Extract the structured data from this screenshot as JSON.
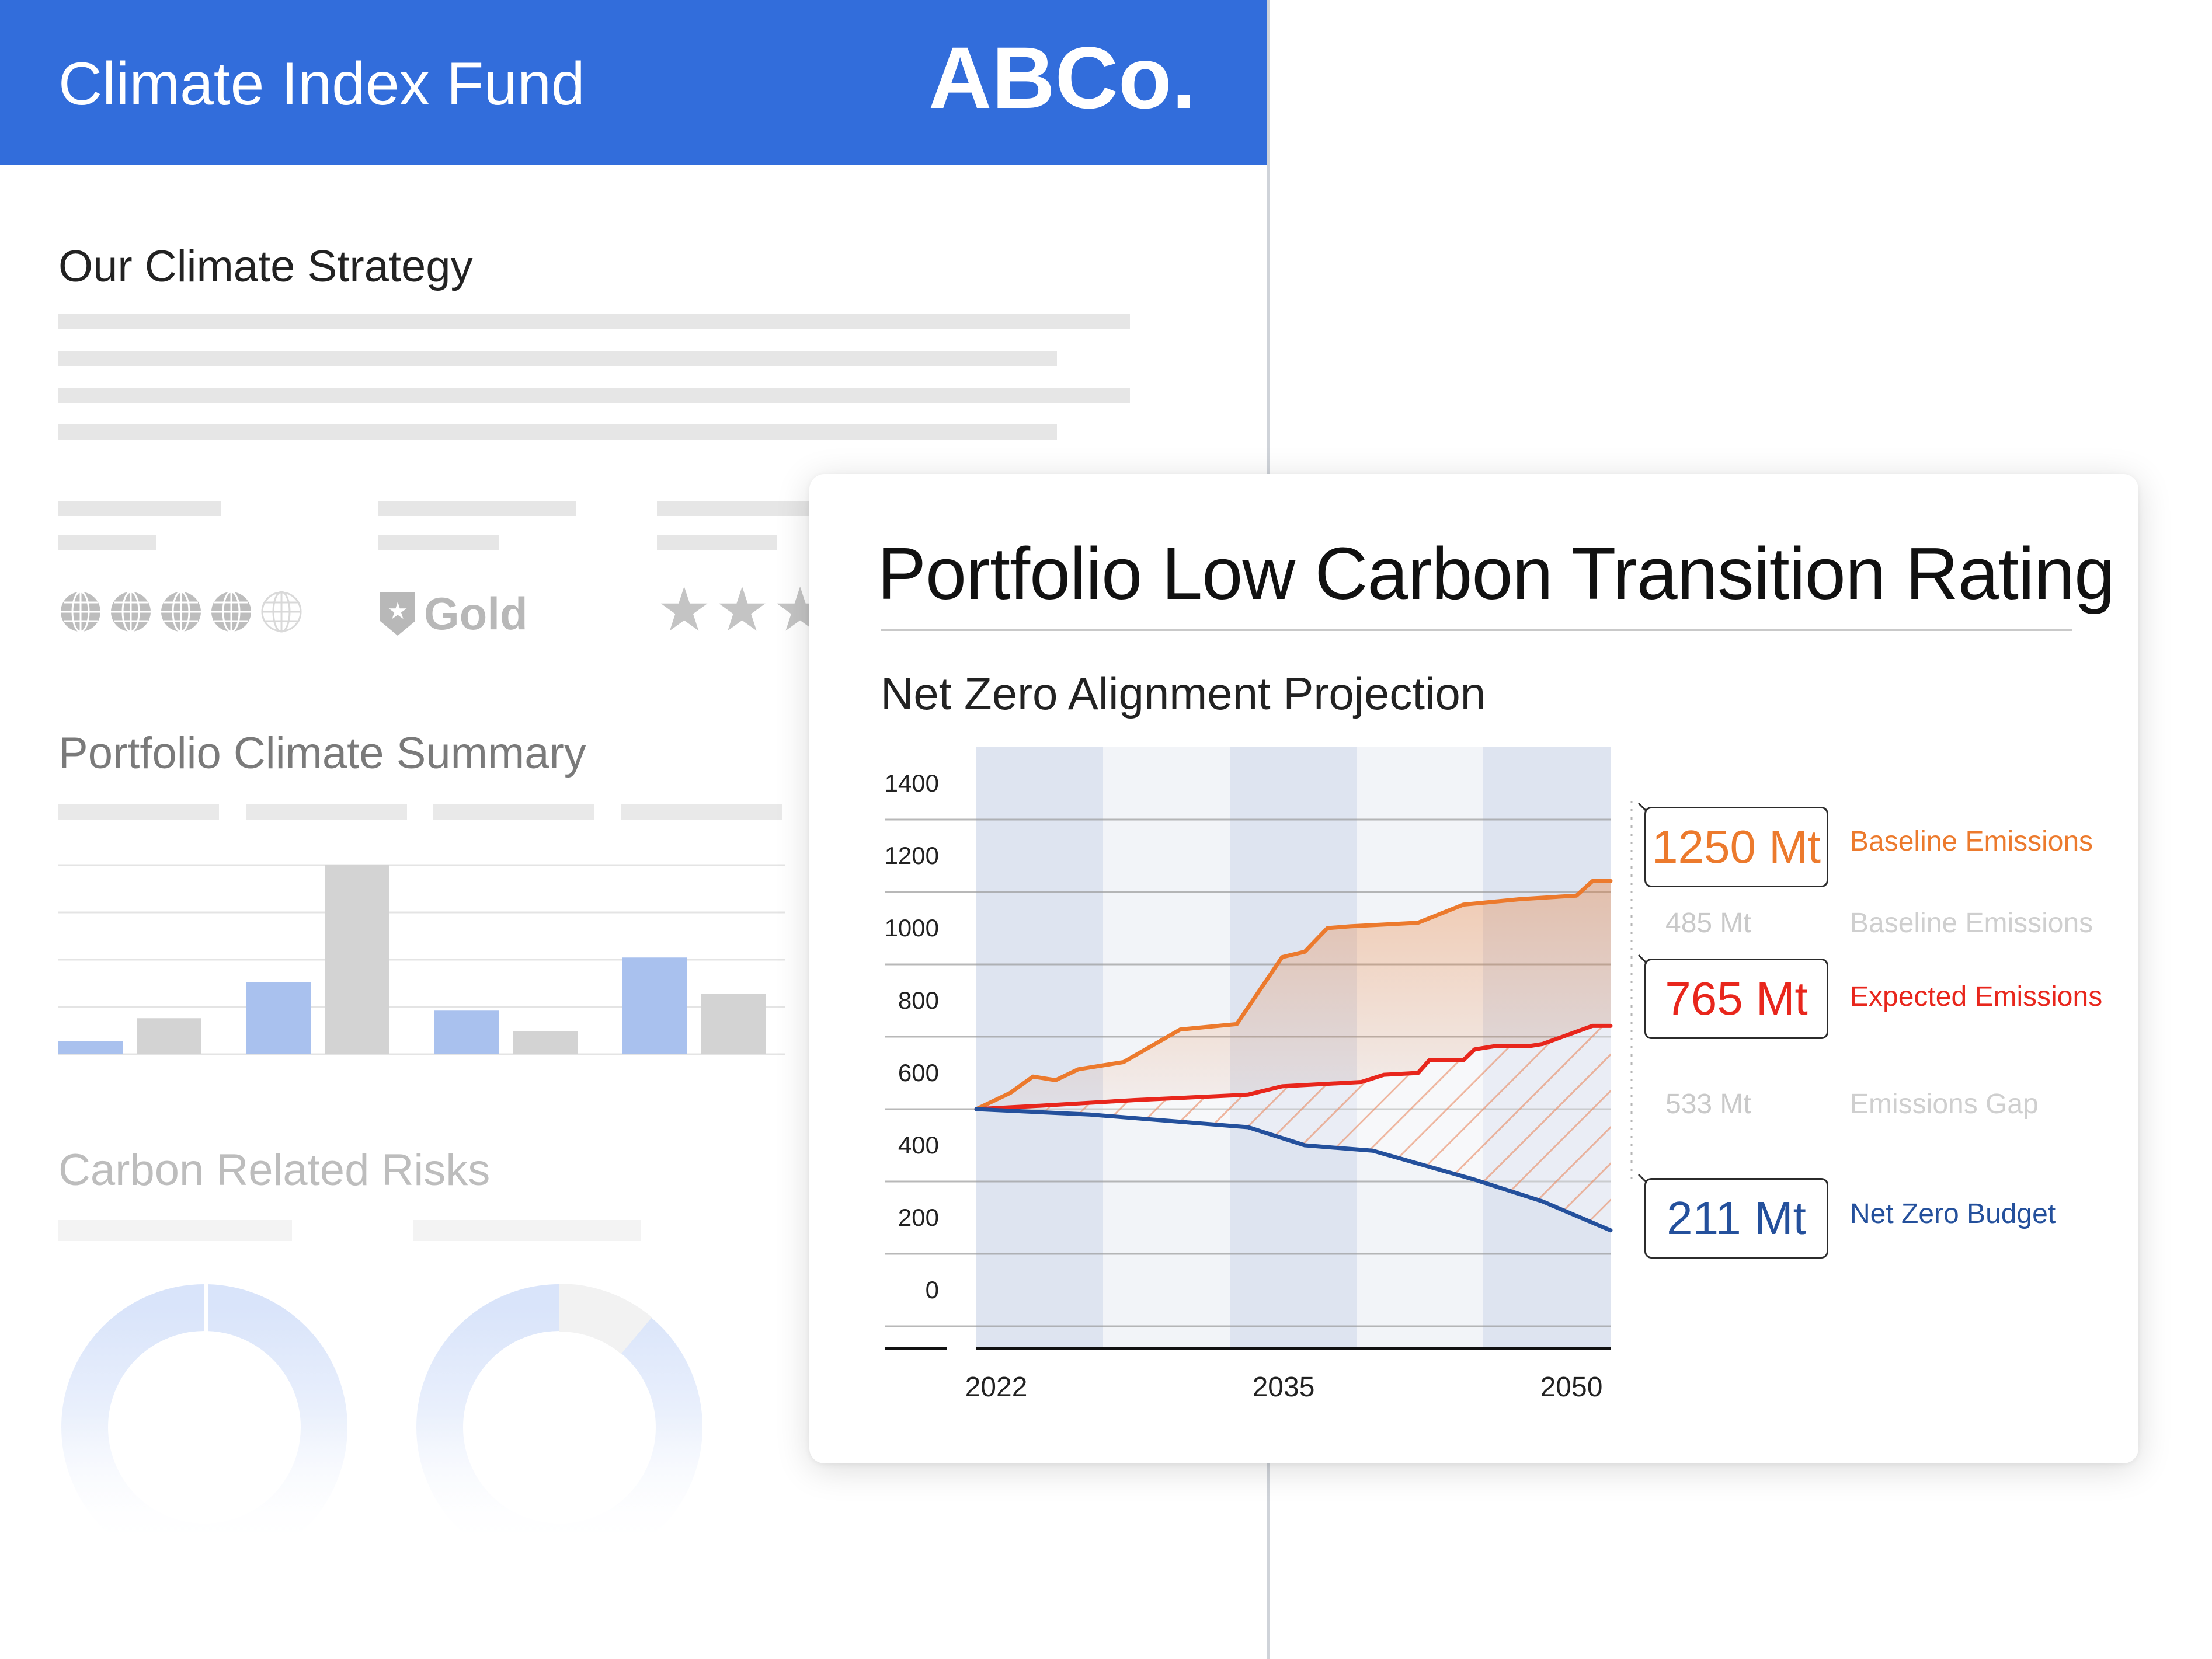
{
  "report": {
    "title": "Climate Index Fund",
    "brand": "ABCo.",
    "strategy_heading": "Our Climate Strategy",
    "rating_gold": "Gold",
    "globe_rating": 4,
    "globe_rating_max": 5,
    "summary_heading": "Portfolio Climate Summary",
    "risks_heading": "Carbon Related Risks",
    "summary_bars": [
      {
        "group": 1,
        "blue": 0.07,
        "gray": 0.19
      },
      {
        "group": 2,
        "blue": 0.38,
        "gray": 1.0
      },
      {
        "group": 3,
        "blue": 0.23,
        "gray": 0.12
      },
      {
        "group": 4,
        "blue": 0.51,
        "gray": 0.32
      }
    ]
  },
  "card": {
    "title": "Portfolio Low Carbon Transition Rating",
    "subtitle": "Net Zero Alignment Projection",
    "callouts": {
      "baseline_value": "1250 Mt",
      "baseline_label": "Baseline Emissions",
      "baseline_secondary_value": "485 Mt",
      "baseline_secondary_label": "Baseline Emissions",
      "expected_value": "765 Mt",
      "expected_label": "Expected Emissions",
      "gap_value": "533 Mt",
      "gap_label": "Emissions Gap",
      "netzero_value": "211 Mt",
      "netzero_label": "Net Zero Budget"
    }
  },
  "colors": {
    "header_blue": "#326ddb",
    "baseline_orange": "#ec7a2d",
    "expected_red": "#e8261c",
    "netzero_blue": "#24509c"
  },
  "chart_data": {
    "type": "line",
    "title": "Net Zero Alignment Projection",
    "xlabel": "",
    "ylabel": "",
    "ylim": [
      0,
      1400
    ],
    "xlim": [
      2022,
      2050
    ],
    "x_tick_labels": [
      "2022",
      "2035",
      "2050"
    ],
    "y_tick_labels": [
      "1400",
      "1200",
      "1000",
      "800",
      "600",
      "400",
      "200",
      "0"
    ],
    "series": [
      {
        "name": "Baseline Emissions",
        "color": "#ec7a2d",
        "points": [
          [
            2022,
            600
          ],
          [
            2023.5,
            645
          ],
          [
            2024.5,
            690
          ],
          [
            2025.5,
            680
          ],
          [
            2026.5,
            710
          ],
          [
            2028.5,
            730
          ],
          [
            2031,
            820
          ],
          [
            2033.5,
            835
          ],
          [
            2035.5,
            1020
          ],
          [
            2036.5,
            1035
          ],
          [
            2037.5,
            1100
          ],
          [
            2038.5,
            1105
          ],
          [
            2041.5,
            1115
          ],
          [
            2043.5,
            1165
          ],
          [
            2046,
            1180
          ],
          [
            2048.5,
            1190
          ],
          [
            2049.2,
            1230
          ],
          [
            2050,
            1230
          ]
        ]
      },
      {
        "name": "Expected Emissions",
        "color": "#e8261c",
        "points": [
          [
            2022,
            600
          ],
          [
            2025,
            610
          ],
          [
            2029,
            625
          ],
          [
            2034,
            640
          ],
          [
            2035.5,
            663
          ],
          [
            2039,
            675
          ],
          [
            2040,
            695
          ],
          [
            2041.5,
            700
          ],
          [
            2042,
            735
          ],
          [
            2043.5,
            735
          ],
          [
            2044,
            765
          ],
          [
            2045,
            775
          ],
          [
            2046.5,
            775
          ],
          [
            2047,
            780
          ],
          [
            2049.2,
            830
          ],
          [
            2050,
            830
          ]
        ]
      },
      {
        "name": "Net Zero Budget",
        "color": "#24509c",
        "points": [
          [
            2022,
            600
          ],
          [
            2027,
            585
          ],
          [
            2034,
            550
          ],
          [
            2036.5,
            500
          ],
          [
            2039.5,
            485
          ],
          [
            2044,
            405
          ],
          [
            2047,
            345
          ],
          [
            2050,
            265
          ]
        ]
      }
    ]
  }
}
